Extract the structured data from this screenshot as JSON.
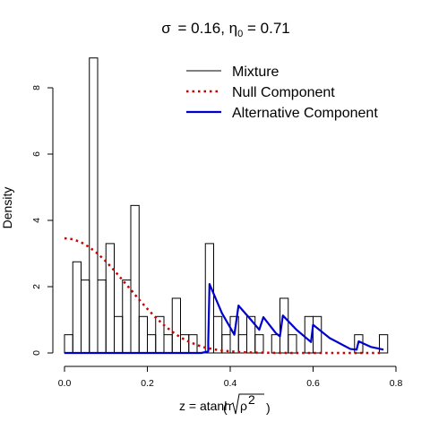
{
  "chart_data": {
    "type": "bar",
    "title": {
      "sigma_symbol": "σ",
      "sigma_value": "0.16",
      "eta_symbol": "η",
      "eta_subscript": "0",
      "eta_value": "0.71"
    },
    "ylabel": "Density",
    "xlabel": {
      "lhs": "z",
      "fn": "atanh",
      "arg": "ρ",
      "exponent": "2"
    },
    "xlim": [
      0.0,
      0.8
    ],
    "ylim": [
      0,
      9
    ],
    "x_ticks": [
      "0.0",
      "0.2",
      "0.4",
      "0.6",
      "0.8"
    ],
    "y_ticks": [
      "0",
      "2",
      "4",
      "6",
      "8"
    ],
    "legend_position": "top-right",
    "legend": [
      {
        "label": "Mixture",
        "style": "solid",
        "color": "#000000"
      },
      {
        "label": "Null Component",
        "style": "dotted",
        "color": "#cc0000"
      },
      {
        "label": "Alternative Component",
        "style": "solid",
        "color": "#0000cc"
      }
    ],
    "histogram": {
      "bin_width": 0.02,
      "bins": [
        {
          "x0": 0.0,
          "density": 0.55
        },
        {
          "x0": 0.02,
          "density": 2.75
        },
        {
          "x0": 0.04,
          "density": 2.2
        },
        {
          "x0": 0.06,
          "density": 8.9
        },
        {
          "x0": 0.08,
          "density": 2.2
        },
        {
          "x0": 0.1,
          "density": 3.3
        },
        {
          "x0": 0.12,
          "density": 1.1
        },
        {
          "x0": 0.14,
          "density": 2.2
        },
        {
          "x0": 0.16,
          "density": 4.45
        },
        {
          "x0": 0.18,
          "density": 1.1
        },
        {
          "x0": 0.2,
          "density": 0.55
        },
        {
          "x0": 0.22,
          "density": 1.1
        },
        {
          "x0": 0.24,
          "density": 0.55
        },
        {
          "x0": 0.26,
          "density": 1.65
        },
        {
          "x0": 0.28,
          "density": 0.55
        },
        {
          "x0": 0.3,
          "density": 0.55
        },
        {
          "x0": 0.32,
          "density": 0.0
        },
        {
          "x0": 0.34,
          "density": 3.3
        },
        {
          "x0": 0.36,
          "density": 1.1
        },
        {
          "x0": 0.38,
          "density": 0.55
        },
        {
          "x0": 0.4,
          "density": 1.1
        },
        {
          "x0": 0.42,
          "density": 0.55
        },
        {
          "x0": 0.44,
          "density": 1.1
        },
        {
          "x0": 0.46,
          "density": 0.55
        },
        {
          "x0": 0.48,
          "density": 0.0
        },
        {
          "x0": 0.5,
          "density": 0.55
        },
        {
          "x0": 0.52,
          "density": 1.65
        },
        {
          "x0": 0.54,
          "density": 0.55
        },
        {
          "x0": 0.56,
          "density": 0.0
        },
        {
          "x0": 0.58,
          "density": 1.1
        },
        {
          "x0": 0.6,
          "density": 1.1
        },
        {
          "x0": 0.62,
          "density": 0.0
        },
        {
          "x0": 0.64,
          "density": 0.0
        },
        {
          "x0": 0.66,
          "density": 0.0
        },
        {
          "x0": 0.68,
          "density": 0.0
        },
        {
          "x0": 0.7,
          "density": 0.55
        },
        {
          "x0": 0.72,
          "density": 0.0
        },
        {
          "x0": 0.74,
          "density": 0.0
        },
        {
          "x0": 0.76,
          "density": 0.55
        }
      ]
    },
    "null_component": {
      "x": [
        0.0,
        0.02,
        0.04,
        0.06,
        0.08,
        0.1,
        0.12,
        0.14,
        0.16,
        0.18,
        0.2,
        0.22,
        0.24,
        0.26,
        0.28,
        0.3,
        0.32,
        0.34,
        0.36,
        0.38,
        0.4,
        0.42,
        0.44,
        0.46,
        0.48,
        0.5,
        0.55,
        0.6,
        0.65,
        0.7,
        0.77
      ],
      "y": [
        3.46,
        3.43,
        3.34,
        3.19,
        3.0,
        2.76,
        2.49,
        2.2,
        1.91,
        1.61,
        1.33,
        1.07,
        0.84,
        0.64,
        0.47,
        0.34,
        0.24,
        0.16,
        0.11,
        0.07,
        0.05,
        0.03,
        0.02,
        0.01,
        0.01,
        0.005,
        0.0,
        0.0,
        0.0,
        0.0,
        0.0
      ]
    },
    "alternative_component": {
      "segments": [
        {
          "x": [
            0.0,
            0.33,
            0.342,
            0.347
          ],
          "y": [
            0,
            0,
            0.03,
            0.05
          ]
        },
        {
          "x": [
            0.347,
            0.35,
            0.38,
            0.41
          ],
          "y": [
            0.35,
            2.08,
            1.2,
            0.55
          ]
        },
        {
          "x": [
            0.41,
            0.42,
            0.45,
            0.47
          ],
          "y": [
            0.55,
            1.43,
            1.0,
            0.7
          ]
        },
        {
          "x": [
            0.47,
            0.48,
            0.51,
            0.52
          ],
          "y": [
            0.7,
            1.08,
            0.6,
            0.5
          ]
        },
        {
          "x": [
            0.52,
            0.527,
            0.56,
            0.595
          ],
          "y": [
            0.5,
            1.13,
            0.7,
            0.33
          ]
        },
        {
          "x": [
            0.595,
            0.6,
            0.64,
            0.69,
            0.705
          ],
          "y": [
            0.33,
            0.85,
            0.45,
            0.12,
            0.1
          ]
        },
        {
          "x": [
            0.705,
            0.71,
            0.74,
            0.77
          ],
          "y": [
            0.1,
            0.35,
            0.18,
            0.1
          ]
        }
      ]
    }
  }
}
